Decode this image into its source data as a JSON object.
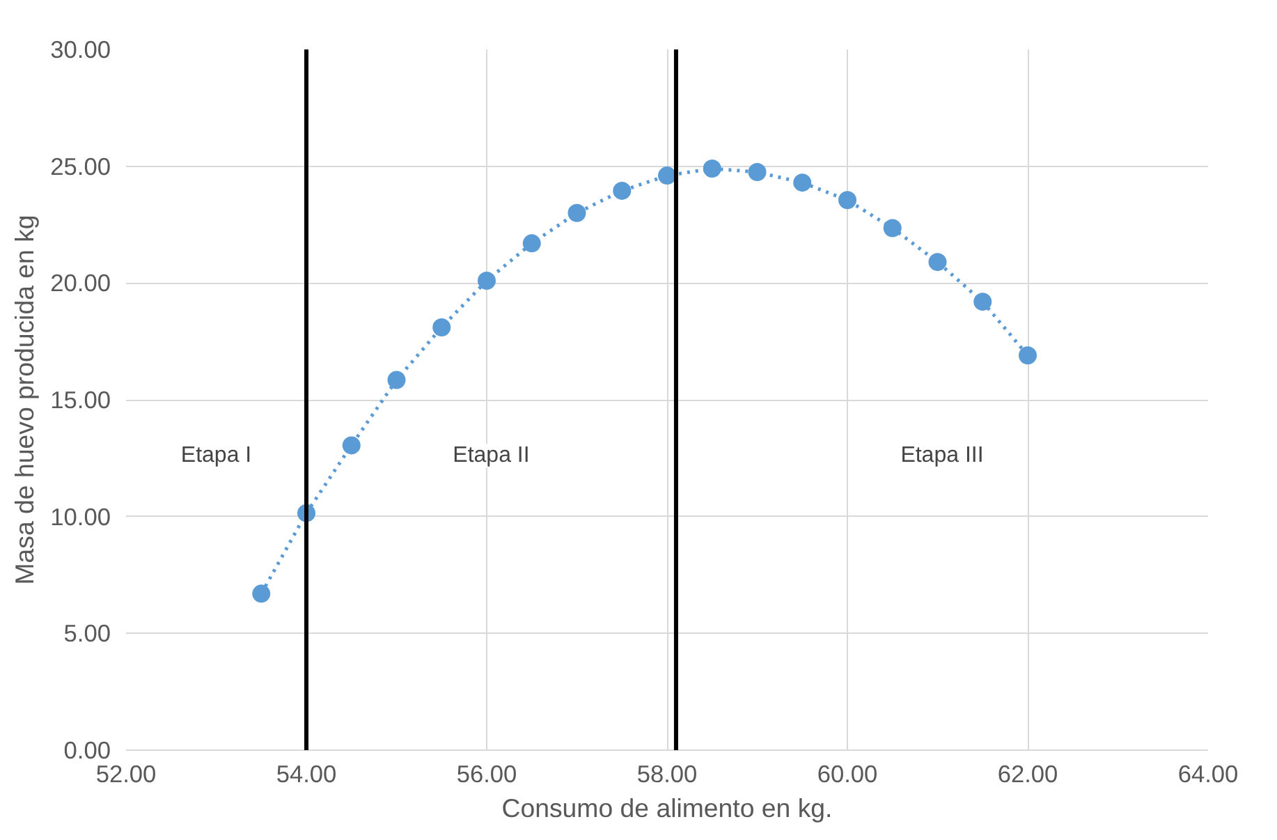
{
  "chart_data": {
    "type": "scatter",
    "xlabel": "Consumo de alimento en kg.",
    "ylabel": "Masa de huevo producida en kg",
    "x": [
      53.5,
      54,
      54.5,
      55,
      55.5,
      56,
      56.5,
      57,
      57.5,
      58,
      58.5,
      59,
      59.5,
      60,
      60.5,
      61,
      61.5,
      62
    ],
    "series": [
      {
        "color": "#5b9bd5",
        "values": [
          6.7,
          10.15,
          13.05,
          15.85,
          18.1,
          20.1,
          21.7,
          23.0,
          23.95,
          24.6,
          24.9,
          24.75,
          24.3,
          23.55,
          22.35,
          20.9,
          19.2,
          16.9
        ]
      },
      {
        "type": "line",
        "color": "#5b9bd5",
        "line_style": "dotted",
        "marker": "none",
        "x": [
          53.5,
          54,
          54.5,
          55,
          55.5,
          56,
          56.5,
          57,
          57.5,
          58,
          58.5,
          59,
          59.5,
          60,
          60.5,
          61,
          61.5,
          62
        ],
        "values": [
          6.7,
          10.15,
          13.05,
          15.85,
          18.1,
          20.1,
          21.7,
          23.0,
          23.95,
          24.6,
          24.9,
          24.75,
          24.3,
          23.55,
          22.35,
          20.9,
          19.2,
          16.9
        ]
      }
    ],
    "xlim": [
      52,
      64
    ],
    "ylim": [
      0,
      30
    ],
    "xticks": [
      {
        "value": 52,
        "label": "52.00"
      },
      {
        "value": 54,
        "label": "54.00"
      },
      {
        "value": 56,
        "label": "56.00"
      },
      {
        "value": 58,
        "label": "58.00"
      },
      {
        "value": 60,
        "label": "60.00"
      },
      {
        "value": 62,
        "label": "62.00"
      },
      {
        "value": 64,
        "label": "64.00"
      }
    ],
    "yticks": [
      {
        "value": 0,
        "label": "0.00"
      },
      {
        "value": 5,
        "label": "5.00"
      },
      {
        "value": 10,
        "label": "10.00"
      },
      {
        "value": 15,
        "label": "15.00"
      },
      {
        "value": 20,
        "label": "20.00"
      },
      {
        "value": 25,
        "label": "25.00"
      },
      {
        "value": 30,
        "label": "30.00"
      }
    ],
    "ref_lines": [
      {
        "axis": "x",
        "value": 54,
        "color": "#000000"
      },
      {
        "axis": "x",
        "value": 58.1,
        "color": "#000000"
      }
    ],
    "annotations": [
      "Etapa I",
      "Etapa II",
      "Etapa III"
    ],
    "marker": "circle",
    "grid": true
  }
}
